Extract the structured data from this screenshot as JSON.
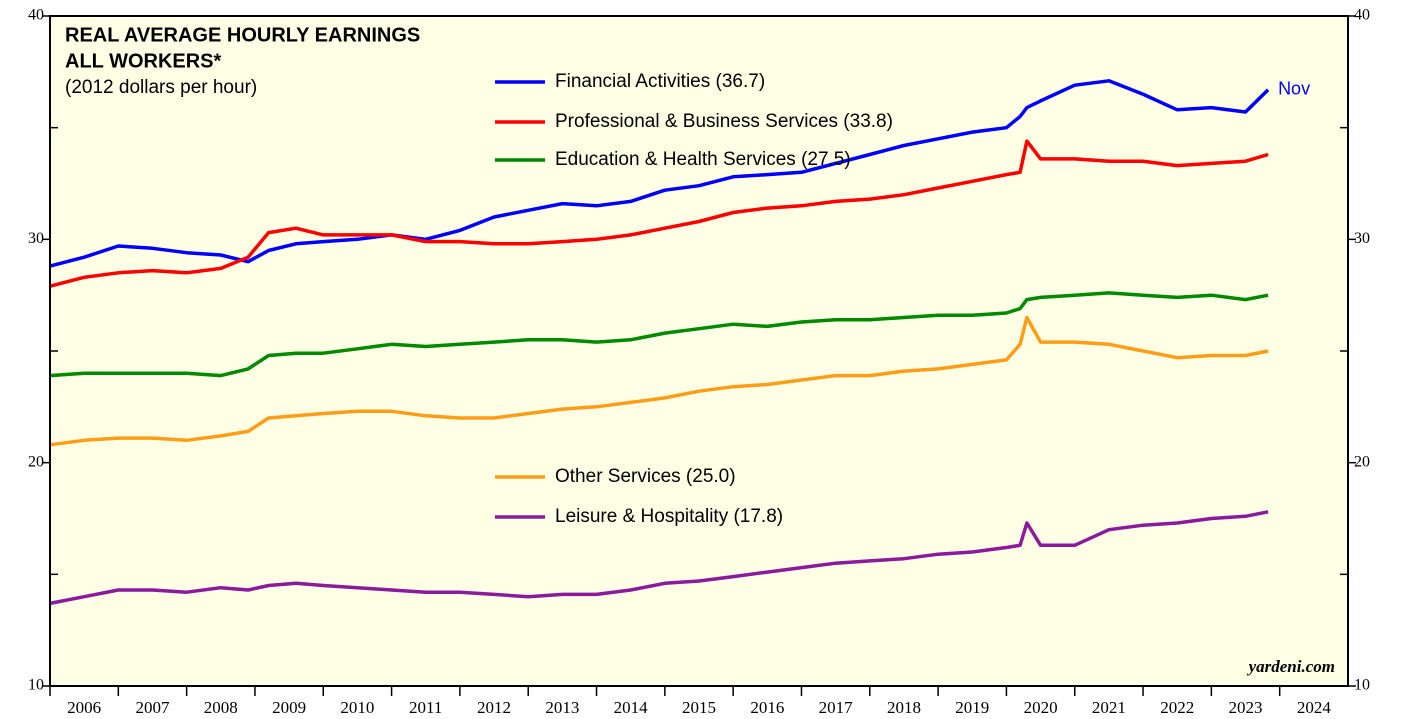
{
  "chart_data": {
    "type": "line",
    "title": "REAL AVERAGE HOURLY EARNINGS",
    "title_line2": "ALL WORKERS*",
    "subtitle": "(2012 dollars per hour)",
    "annotation": "Nov",
    "source": "yardeni.com",
    "x": [
      2006.0,
      2006.5,
      2007.0,
      2007.5,
      2008.0,
      2008.5,
      2008.9,
      2009.2,
      2009.6,
      2010.0,
      2010.5,
      2011.0,
      2011.5,
      2012.0,
      2012.5,
      2013.0,
      2013.5,
      2014.0,
      2014.5,
      2015.0,
      2015.5,
      2016.0,
      2016.5,
      2017.0,
      2017.5,
      2018.0,
      2018.5,
      2019.0,
      2019.5,
      2020.0,
      2020.2,
      2020.3,
      2020.5,
      2021.0,
      2021.5,
      2022.0,
      2022.5,
      2023.0,
      2023.5,
      2023.83
    ],
    "series": [
      {
        "name": "Financial Activities (36.7)",
        "color": "#0000ff",
        "values": [
          28.8,
          29.2,
          29.7,
          29.6,
          29.4,
          29.3,
          29.0,
          29.5,
          29.8,
          29.9,
          30.0,
          30.2,
          30.0,
          30.4,
          31.0,
          31.3,
          31.6,
          31.5,
          31.7,
          32.2,
          32.4,
          32.8,
          32.9,
          33.0,
          33.4,
          33.8,
          34.2,
          34.5,
          34.8,
          35.0,
          35.5,
          35.9,
          36.2,
          36.9,
          37.1,
          36.5,
          35.8,
          35.9,
          35.7,
          36.7
        ]
      },
      {
        "name": "Professional & Business Services (33.8)",
        "color": "#ff0000",
        "values": [
          27.9,
          28.3,
          28.5,
          28.6,
          28.5,
          28.7,
          29.2,
          30.3,
          30.5,
          30.2,
          30.2,
          30.2,
          29.9,
          29.9,
          29.8,
          29.8,
          29.9,
          30.0,
          30.2,
          30.5,
          30.8,
          31.2,
          31.4,
          31.5,
          31.7,
          31.8,
          32.0,
          32.3,
          32.6,
          32.9,
          33.0,
          34.4,
          33.6,
          33.6,
          33.5,
          33.5,
          33.3,
          33.4,
          33.5,
          33.8
        ]
      },
      {
        "name": "Education & Health Services (27.5)",
        "color": "#008a00",
        "values": [
          23.9,
          24.0,
          24.0,
          24.0,
          24.0,
          23.9,
          24.2,
          24.8,
          24.9,
          24.9,
          25.1,
          25.3,
          25.2,
          25.3,
          25.4,
          25.5,
          25.5,
          25.4,
          25.5,
          25.8,
          26.0,
          26.2,
          26.1,
          26.3,
          26.4,
          26.4,
          26.5,
          26.6,
          26.6,
          26.7,
          26.9,
          27.3,
          27.4,
          27.5,
          27.6,
          27.5,
          27.4,
          27.5,
          27.3,
          27.5
        ]
      },
      {
        "name": "Other Services (25.0)",
        "color": "#ff9e16",
        "values": [
          20.8,
          21.0,
          21.1,
          21.1,
          21.0,
          21.2,
          21.4,
          22.0,
          22.1,
          22.2,
          22.3,
          22.3,
          22.1,
          22.0,
          22.0,
          22.2,
          22.4,
          22.5,
          22.7,
          22.9,
          23.2,
          23.4,
          23.5,
          23.7,
          23.9,
          23.9,
          24.1,
          24.2,
          24.4,
          24.6,
          25.3,
          26.5,
          25.4,
          25.4,
          25.3,
          25.0,
          24.7,
          24.8,
          24.8,
          25.0
        ]
      },
      {
        "name": "Leisure & Hospitality (17.8)",
        "color": "#8b1a9c",
        "values": [
          13.7,
          14.0,
          14.3,
          14.3,
          14.2,
          14.4,
          14.3,
          14.5,
          14.6,
          14.5,
          14.4,
          14.3,
          14.2,
          14.2,
          14.1,
          14.0,
          14.1,
          14.1,
          14.3,
          14.6,
          14.7,
          14.9,
          15.1,
          15.3,
          15.5,
          15.6,
          15.7,
          15.9,
          16.0,
          16.2,
          16.3,
          17.3,
          16.3,
          16.3,
          17.0,
          17.2,
          17.3,
          17.5,
          17.6,
          17.8
        ]
      }
    ],
    "xlim": [
      2006,
      2025
    ],
    "xticks": [
      2006,
      2007,
      2008,
      2009,
      2010,
      2011,
      2012,
      2013,
      2014,
      2015,
      2016,
      2017,
      2018,
      2019,
      2020,
      2021,
      2022,
      2023,
      2024
    ],
    "ylim": [
      10,
      40
    ],
    "yticks": [
      10,
      20,
      30,
      40
    ],
    "yminorticks": [
      15,
      25,
      35
    ],
    "background": "#ffffe6"
  }
}
